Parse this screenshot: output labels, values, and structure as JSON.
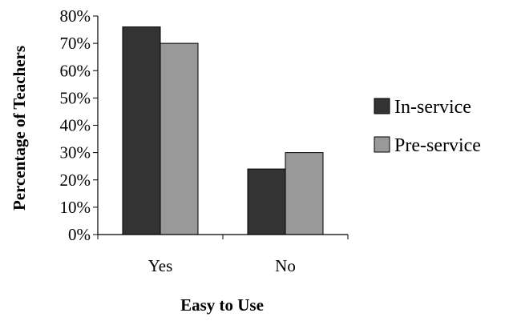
{
  "chart_data": {
    "type": "bar",
    "title": "",
    "xlabel": "Easy to Use",
    "ylabel": "Percentage of Teachers",
    "categories": [
      "Yes",
      "No"
    ],
    "series": [
      {
        "name": "In-service",
        "values": [
          76,
          24
        ],
        "color": "#333333"
      },
      {
        "name": "Pre-service",
        "values": [
          70,
          30
        ],
        "color": "#999999"
      }
    ],
    "ylim": [
      0,
      80
    ],
    "yticks": [
      0,
      10,
      20,
      30,
      40,
      50,
      60,
      70,
      80
    ],
    "ytick_suffix": "%",
    "grid": false,
    "legend_position": "right"
  }
}
